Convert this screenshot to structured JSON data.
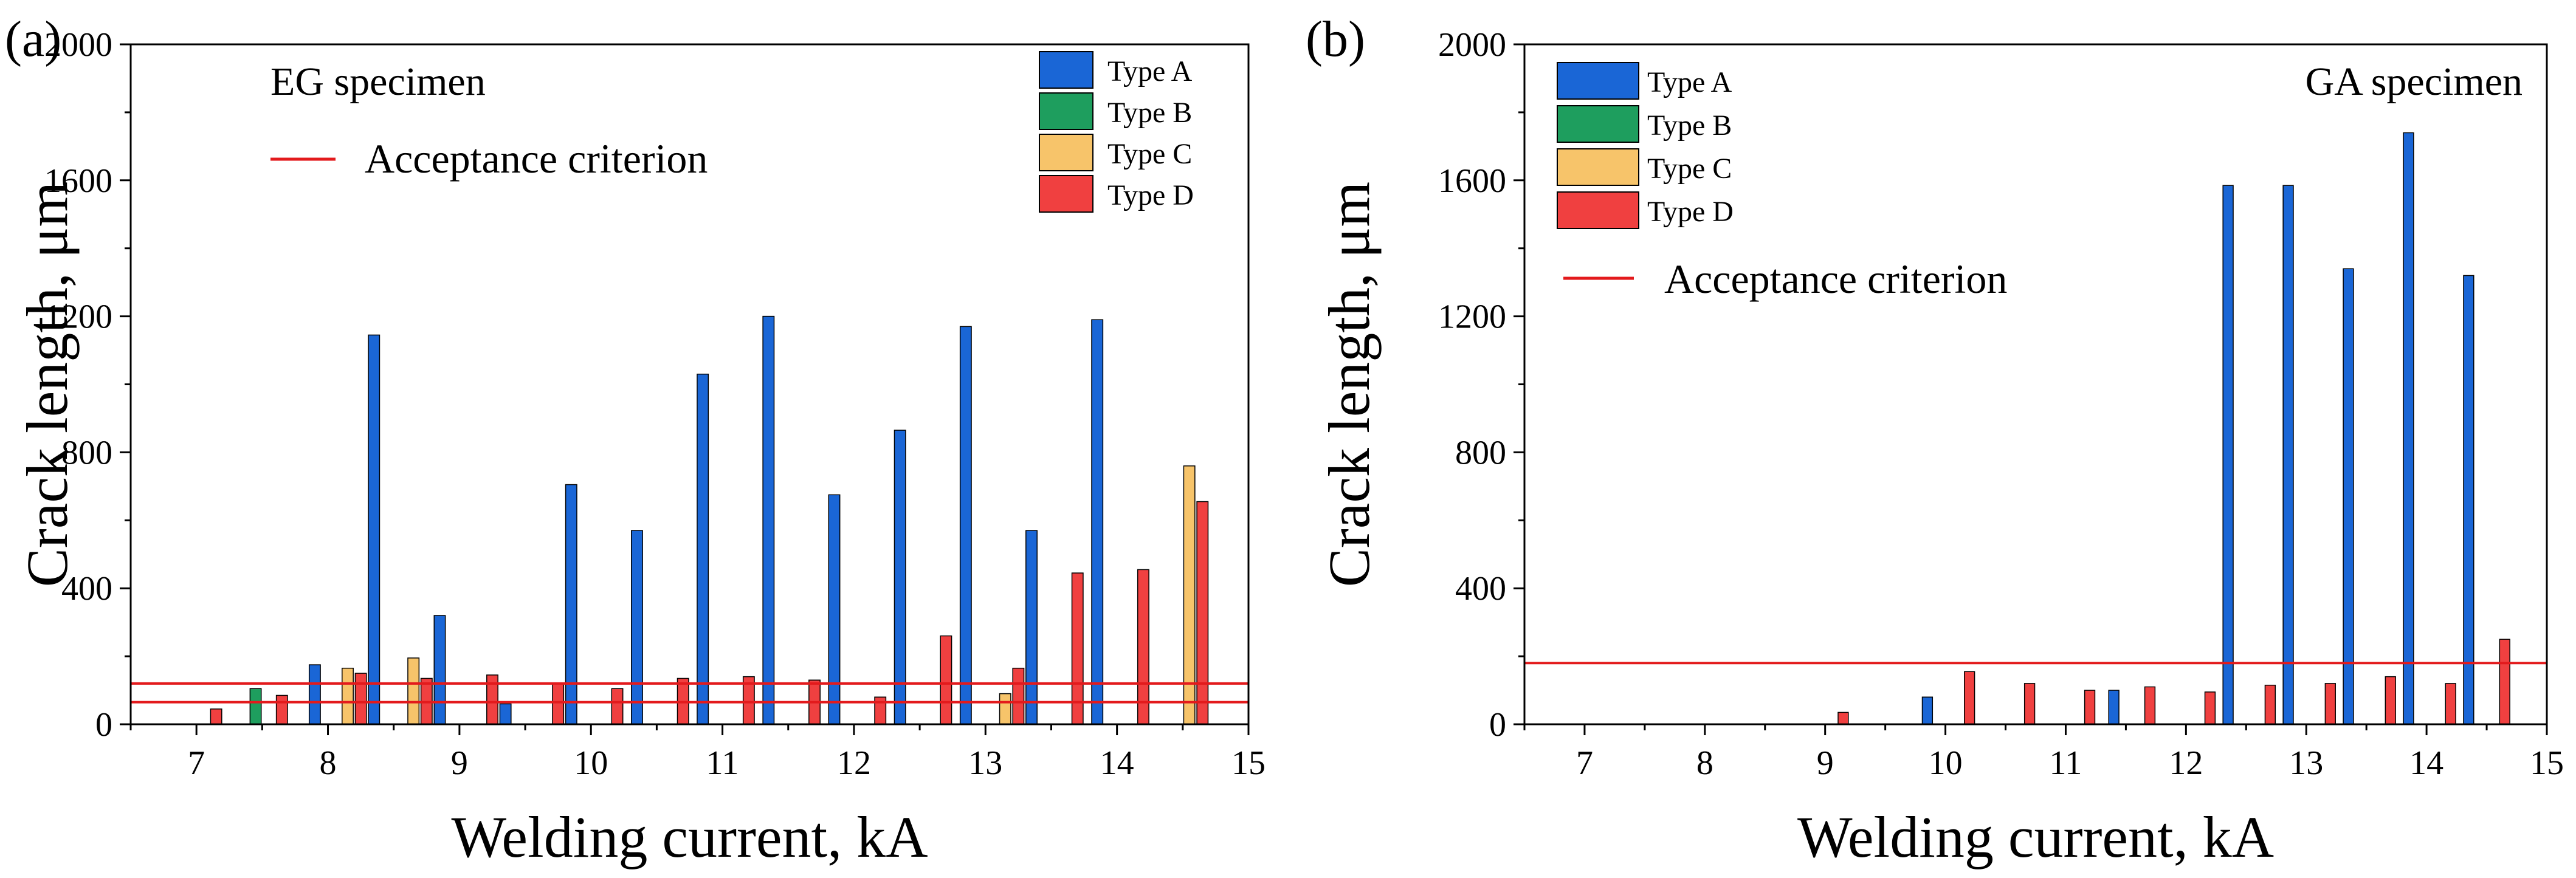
{
  "chart_data": [
    {
      "type": "bar",
      "panel_label": "(a)",
      "title": "EG specimen",
      "xlabel": "Welding current, kA",
      "ylabel": "Crack length, μm",
      "xlim": [
        6.5,
        15
      ],
      "ylim": [
        0,
        2000
      ],
      "xticks": [
        "7",
        "8",
        "9",
        "10",
        "11",
        "12",
        "13",
        "14",
        "15"
      ],
      "yticks": [
        "0",
        "400",
        "800",
        "1200",
        "1600",
        "2000"
      ],
      "grid": false,
      "legend_position": "top-right",
      "acceptance_label": "Acceptance criterion",
      "acceptance_criterion": [
        120,
        65
      ],
      "series": [
        {
          "name": "Type A",
          "color": "#1a66d6",
          "points": [
            [
              7.9,
              175
            ],
            [
              8.35,
              1145
            ],
            [
              8.85,
              320
            ],
            [
              9.35,
              60
            ],
            [
              9.85,
              705
            ],
            [
              10.35,
              570
            ],
            [
              10.85,
              1030
            ],
            [
              11.35,
              1200
            ],
            [
              11.85,
              675
            ],
            [
              12.35,
              865
            ],
            [
              12.85,
              1170
            ],
            [
              13.35,
              570
            ],
            [
              13.85,
              1190
            ]
          ]
        },
        {
          "name": "Type B",
          "color": "#1e9e5e",
          "points": [
            [
              7.45,
              105
            ]
          ]
        },
        {
          "name": "Type C",
          "color": "#f7c46a",
          "points": [
            [
              8.15,
              165
            ],
            [
              8.65,
              195
            ],
            [
              13.15,
              90
            ],
            [
              14.55,
              760
            ]
          ]
        },
        {
          "name": "Type D",
          "color": "#f04040",
          "points": [
            [
              7.15,
              45
            ],
            [
              7.65,
              85
            ],
            [
              8.25,
              150
            ],
            [
              8.75,
              135
            ],
            [
              9.25,
              145
            ],
            [
              9.75,
              120
            ],
            [
              10.2,
              105
            ],
            [
              10.7,
              135
            ],
            [
              11.2,
              140
            ],
            [
              11.7,
              130
            ],
            [
              12.2,
              80
            ],
            [
              12.7,
              260
            ],
            [
              13.25,
              165
            ],
            [
              13.7,
              445
            ],
            [
              14.2,
              455
            ],
            [
              14.65,
              655
            ]
          ]
        }
      ]
    },
    {
      "type": "bar",
      "panel_label": "(b)",
      "title": "GA specimen",
      "xlabel": "Welding current, kA",
      "ylabel": "Crack length, μm",
      "xlim": [
        6.5,
        15
      ],
      "ylim": [
        0,
        2000
      ],
      "xticks": [
        "7",
        "8",
        "9",
        "10",
        "11",
        "12",
        "13",
        "14",
        "15"
      ],
      "yticks": [
        "0",
        "400",
        "800",
        "1200",
        "1600",
        "2000"
      ],
      "grid": false,
      "legend_position": "top-left",
      "acceptance_label": "Acceptance criterion",
      "acceptance_criterion": [
        180
      ],
      "series": [
        {
          "name": "Type A",
          "color": "#1a66d6",
          "points": [
            [
              9.85,
              80
            ],
            [
              11.4,
              100
            ],
            [
              12.35,
              1585
            ],
            [
              12.85,
              1585
            ],
            [
              13.35,
              1340
            ],
            [
              13.85,
              1740
            ],
            [
              14.35,
              1320
            ]
          ]
        },
        {
          "name": "Type B",
          "color": "#1e9e5e",
          "points": []
        },
        {
          "name": "Type C",
          "color": "#f7c46a",
          "points": []
        },
        {
          "name": "Type D",
          "color": "#f04040",
          "points": [
            [
              9.15,
              35
            ],
            [
              10.2,
              155
            ],
            [
              10.7,
              120
            ],
            [
              11.2,
              100
            ],
            [
              11.7,
              110
            ],
            [
              12.2,
              95
            ],
            [
              12.7,
              115
            ],
            [
              13.2,
              120
            ],
            [
              13.7,
              140
            ],
            [
              14.2,
              120
            ],
            [
              14.65,
              250
            ]
          ]
        }
      ]
    }
  ]
}
